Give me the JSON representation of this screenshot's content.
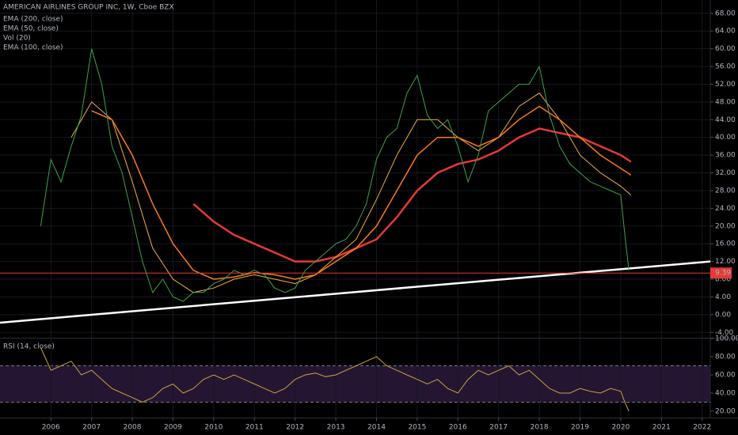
{
  "chart_data": [
    {
      "type": "line",
      "title": "AMERICAN AIRLINES GROUP INC, 1W, Cboe BZX",
      "volume_label": "Vol (20)",
      "xlim": [
        2004.75,
        2022.2
      ],
      "xticks": [
        2006,
        2007,
        2008,
        2009,
        2010,
        2011,
        2012,
        2013,
        2014,
        2015,
        2016,
        2017,
        2018,
        2019,
        2020,
        2021,
        2022
      ],
      "ylim": [
        -5.2,
        71
      ],
      "yticks": [
        {
          "value": 68,
          "label": "68.00"
        },
        {
          "value": 64,
          "label": "64.00"
        },
        {
          "value": 60,
          "label": "60.00"
        },
        {
          "value": 56,
          "label": "56.00"
        },
        {
          "value": 52,
          "label": "52.00"
        },
        {
          "value": 48,
          "label": "48.00"
        },
        {
          "value": 44,
          "label": "44.00"
        },
        {
          "value": 40,
          "label": "40.00"
        },
        {
          "value": 36,
          "label": "36.00"
        },
        {
          "value": 32,
          "label": "32.00"
        },
        {
          "value": 28,
          "label": "28.00"
        },
        {
          "value": 24,
          "label": "24.00"
        },
        {
          "value": 20,
          "label": "20.00"
        },
        {
          "value": 16,
          "label": "16.00"
        },
        {
          "value": 12,
          "label": "12.00"
        },
        {
          "value": 8,
          "label": "8.00"
        },
        {
          "value": 4,
          "label": "4.00"
        },
        {
          "value": 0,
          "label": "0.00"
        },
        {
          "value": -4,
          "label": "-4.00"
        }
      ],
      "grid": true,
      "series": [
        {
          "name": "EMA (200, close)",
          "color": "#e53935",
          "width": 2.5,
          "x": [
            2009.5,
            2010.0,
            2010.5,
            2011.0,
            2011.5,
            2012.0,
            2012.5,
            2013.0,
            2013.5,
            2014.0,
            2014.5,
            2015.0,
            2015.5,
            2016.0,
            2016.5,
            2017.0,
            2017.5,
            2018.0,
            2018.5,
            2019.0,
            2019.5,
            2020.0,
            2020.25
          ],
          "values": [
            25,
            21,
            18,
            16,
            14,
            12,
            12,
            13,
            15,
            17,
            22,
            28,
            32,
            34,
            35,
            37,
            40,
            42,
            41,
            40,
            38,
            36,
            34.5
          ]
        },
        {
          "name": "EMA (50, close)",
          "color": "#f0b040",
          "width": 1,
          "x": [
            2006.5,
            2007.0,
            2007.5,
            2008.0,
            2008.5,
            2009.0,
            2009.5,
            2010.0,
            2010.5,
            2011.0,
            2011.5,
            2012.0,
            2012.5,
            2013.0,
            2013.5,
            2014.0,
            2014.5,
            2015.0,
            2015.5,
            2016.0,
            2016.5,
            2017.0,
            2017.5,
            2018.0,
            2018.5,
            2019.0,
            2019.5,
            2020.0,
            2020.25
          ],
          "values": [
            40,
            48,
            44,
            30,
            15,
            8,
            5,
            6,
            8,
            9,
            8,
            7,
            9,
            13,
            17,
            26,
            36,
            44,
            44,
            40,
            37,
            40,
            47,
            50,
            44,
            36,
            32,
            29,
            27
          ]
        },
        {
          "name": "EMA (100, close)",
          "color": "#ff7a1a",
          "width": 1.5,
          "x": [
            2007.0,
            2007.5,
            2008.0,
            2008.5,
            2009.0,
            2009.5,
            2010.0,
            2010.5,
            2011.0,
            2011.5,
            2012.0,
            2012.5,
            2013.0,
            2013.5,
            2014.0,
            2014.5,
            2015.0,
            2015.5,
            2016.0,
            2016.5,
            2017.0,
            2017.5,
            2018.0,
            2018.5,
            2019.0,
            2019.5,
            2020.0,
            2020.25
          ],
          "values": [
            46,
            44,
            36,
            25,
            16,
            10,
            8,
            8.5,
            9.5,
            9,
            8,
            9,
            12,
            15,
            20,
            28,
            36,
            40,
            40,
            38,
            40,
            44,
            47,
            44,
            40,
            36,
            33,
            31.5
          ]
        },
        {
          "color": "#3fa34d",
          "width": 1,
          "x": [
            2005.75,
            2006.0,
            2006.25,
            2006.5,
            2006.75,
            2007.0,
            2007.25,
            2007.5,
            2007.75,
            2008.0,
            2008.25,
            2008.5,
            2008.75,
            2009.0,
            2009.25,
            2009.5,
            2009.75,
            2010.0,
            2010.25,
            2010.5,
            2010.75,
            2011.0,
            2011.25,
            2011.5,
            2011.75,
            2012.0,
            2012.25,
            2012.5,
            2012.75,
            2013.0,
            2013.25,
            2013.5,
            2013.75,
            2014.0,
            2014.25,
            2014.5,
            2014.75,
            2015.0,
            2015.25,
            2015.5,
            2015.75,
            2016.0,
            2016.25,
            2016.5,
            2016.75,
            2017.0,
            2017.25,
            2017.5,
            2017.75,
            2018.0,
            2018.25,
            2018.5,
            2018.75,
            2019.0,
            2019.25,
            2019.5,
            2019.75,
            2020.0,
            2020.1,
            2020.2
          ],
          "values": [
            20,
            35,
            30,
            38,
            45,
            60,
            52,
            38,
            32,
            22,
            12,
            5,
            8,
            4,
            3,
            5,
            5,
            7,
            8,
            10,
            9,
            10,
            9,
            6,
            5,
            6,
            10,
            12,
            14,
            16,
            17,
            20,
            25,
            35,
            40,
            42,
            50,
            54,
            45,
            42,
            44,
            38,
            30,
            36,
            46,
            48,
            50,
            52,
            52,
            56,
            45,
            38,
            34,
            32,
            30,
            29,
            28,
            27,
            18,
            10
          ]
        }
      ],
      "trendline": {
        "color": "#ffffff",
        "x": [
          2004.75,
          2022.2
        ],
        "y": [
          -1.8,
          12
        ]
      },
      "last_price": {
        "value": 9.39,
        "label": "9.39",
        "color": "#e53935"
      }
    },
    {
      "type": "line",
      "title": "RSI (14, close)",
      "xlim": [
        2004.75,
        2022.2
      ],
      "ylim": [
        13,
        100
      ],
      "yticks": [
        {
          "value": 100,
          "label": "100.00"
        },
        {
          "value": 80,
          "label": "80.00"
        },
        {
          "value": 60,
          "label": "60.00"
        },
        {
          "value": 40,
          "label": "40.00"
        },
        {
          "value": 20,
          "label": "20.00"
        }
      ],
      "band": [
        30,
        70
      ],
      "band_color": "#241532",
      "grid": true,
      "series": [
        {
          "color": "#c9a33a",
          "width": 1,
          "x": [
            2005.75,
            2006.0,
            2006.25,
            2006.5,
            2006.75,
            2007.0,
            2007.25,
            2007.5,
            2007.75,
            2008.0,
            2008.25,
            2008.5,
            2008.75,
            2009.0,
            2009.25,
            2009.5,
            2009.75,
            2010.0,
            2010.25,
            2010.5,
            2010.75,
            2011.0,
            2011.25,
            2011.5,
            2011.75,
            2012.0,
            2012.25,
            2012.5,
            2012.75,
            2013.0,
            2013.25,
            2013.5,
            2013.75,
            2014.0,
            2014.25,
            2014.5,
            2014.75,
            2015.0,
            2015.25,
            2015.5,
            2015.75,
            2016.0,
            2016.25,
            2016.5,
            2016.75,
            2017.0,
            2017.25,
            2017.5,
            2017.75,
            2018.0,
            2018.25,
            2018.5,
            2018.75,
            2019.0,
            2019.25,
            2019.5,
            2019.75,
            2020.0,
            2020.1,
            2020.2
          ],
          "values": [
            90,
            65,
            70,
            75,
            60,
            65,
            55,
            45,
            40,
            35,
            30,
            35,
            45,
            50,
            40,
            45,
            55,
            60,
            55,
            60,
            55,
            50,
            45,
            40,
            45,
            55,
            60,
            62,
            58,
            60,
            65,
            70,
            75,
            80,
            70,
            65,
            60,
            55,
            50,
            55,
            45,
            40,
            55,
            65,
            60,
            65,
            70,
            60,
            65,
            55,
            45,
            40,
            40,
            45,
            42,
            40,
            45,
            42,
            30,
            20
          ]
        }
      ]
    }
  ]
}
